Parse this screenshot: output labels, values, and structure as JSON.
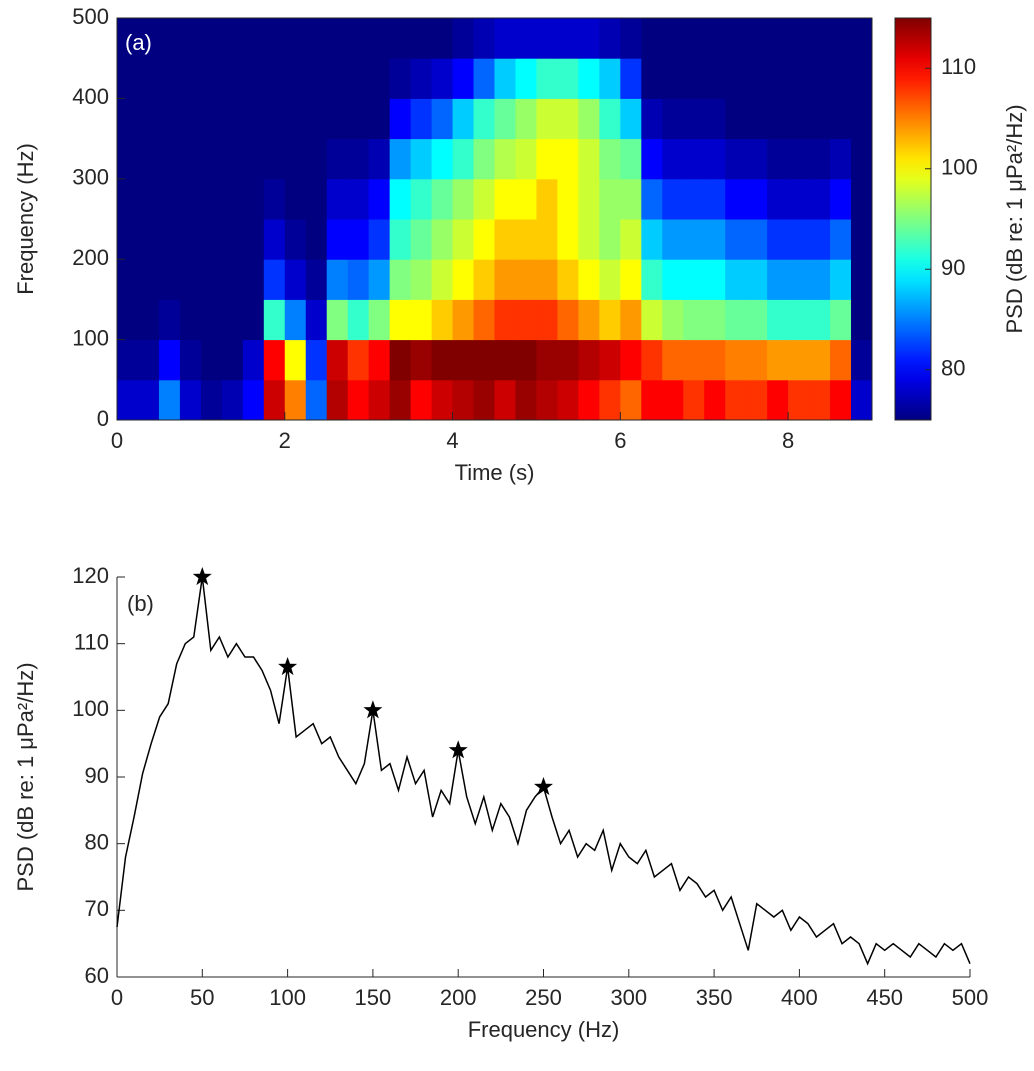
{
  "chart_data": [
    {
      "type": "heatmap",
      "annotation": "(a)",
      "xlabel": "Time (s)",
      "ylabel": "Frequency (Hz)",
      "colorbar_label": "PSD (dB re: 1 μPa²/Hz)",
      "colormap": "jet",
      "clim": [
        75,
        115
      ],
      "cticks": [
        80,
        90,
        100,
        110
      ],
      "xlim": [
        0,
        9
      ],
      "xticks": [
        0,
        2,
        4,
        6,
        8
      ],
      "ylim": [
        0,
        500
      ],
      "yticks": [
        0,
        100,
        200,
        300,
        400,
        500
      ],
      "xbins": [
        0,
        0.25,
        0.5,
        0.75,
        1,
        1.25,
        1.5,
        1.75,
        2,
        2.25,
        2.5,
        2.75,
        3,
        3.25,
        3.5,
        3.75,
        4,
        4.25,
        4.5,
        4.75,
        5,
        5.25,
        5.5,
        5.75,
        6,
        6.25,
        6.5,
        6.75,
        7,
        7.25,
        7.5,
        7.75,
        8,
        8.25,
        8.5,
        8.75,
        9
      ],
      "ybins": [
        0,
        50,
        100,
        150,
        200,
        250,
        300,
        350,
        400,
        450,
        500
      ],
      "z": [
        [
          78,
          78,
          85,
          78,
          76,
          77,
          80,
          112,
          105,
          84,
          113,
          110,
          112,
          114,
          110,
          112,
          113,
          114,
          112,
          114,
          113,
          112,
          110,
          108,
          106,
          110,
          110,
          108,
          110,
          108,
          108,
          110,
          108,
          108,
          110,
          78
        ],
        [
          76,
          76,
          80,
          76,
          75,
          75,
          78,
          110,
          100,
          82,
          112,
          108,
          110,
          115,
          114,
          115,
          115,
          115,
          115,
          115,
          114,
          114,
          113,
          112,
          110,
          108,
          106,
          106,
          106,
          105,
          105,
          104,
          104,
          104,
          106,
          76
        ],
        [
          75,
          75,
          76,
          75,
          75,
          75,
          75,
          92,
          85,
          78,
          95,
          92,
          95,
          100,
          100,
          102,
          104,
          106,
          108,
          108,
          108,
          106,
          104,
          102,
          104,
          98,
          96,
          95,
          95,
          94,
          94,
          92,
          92,
          92,
          94,
          75
        ],
        [
          75,
          75,
          75,
          75,
          75,
          75,
          75,
          82,
          78,
          76,
          85,
          84,
          86,
          95,
          96,
          98,
          100,
          102,
          104,
          104,
          104,
          102,
          100,
          98,
          100,
          92,
          90,
          90,
          90,
          88,
          88,
          86,
          86,
          86,
          88,
          75
        ],
        [
          75,
          75,
          75,
          75,
          75,
          75,
          75,
          78,
          76,
          75,
          80,
          80,
          82,
          92,
          94,
          96,
          98,
          100,
          102,
          102,
          102,
          100,
          98,
          96,
          98,
          88,
          86,
          86,
          86,
          84,
          84,
          82,
          82,
          82,
          84,
          75
        ],
        [
          75,
          75,
          75,
          75,
          75,
          75,
          75,
          76,
          75,
          75,
          78,
          78,
          80,
          90,
          92,
          94,
          96,
          98,
          100,
          100,
          102,
          100,
          98,
          96,
          96,
          84,
          82,
          82,
          82,
          80,
          80,
          78,
          78,
          78,
          80,
          75
        ],
        [
          75,
          75,
          75,
          75,
          75,
          75,
          75,
          75,
          75,
          75,
          76,
          76,
          77,
          86,
          88,
          90,
          92,
          95,
          97,
          98,
          100,
          100,
          98,
          95,
          94,
          80,
          78,
          78,
          78,
          77,
          77,
          76,
          76,
          76,
          77,
          75
        ],
        [
          75,
          75,
          75,
          75,
          75,
          75,
          75,
          75,
          75,
          75,
          75,
          75,
          75,
          80,
          82,
          84,
          88,
          92,
          94,
          96,
          98,
          98,
          96,
          92,
          88,
          77,
          76,
          76,
          76,
          75,
          75,
          75,
          75,
          75,
          75,
          75
        ],
        [
          75,
          75,
          75,
          75,
          75,
          75,
          75,
          75,
          75,
          75,
          75,
          75,
          75,
          76,
          77,
          78,
          80,
          84,
          88,
          90,
          92,
          92,
          90,
          88,
          82,
          75,
          75,
          75,
          75,
          75,
          75,
          75,
          75,
          75,
          75,
          75
        ],
        [
          75,
          75,
          75,
          75,
          75,
          75,
          75,
          75,
          75,
          75,
          75,
          75,
          75,
          75,
          75,
          75,
          76,
          77,
          78,
          78,
          78,
          78,
          78,
          77,
          76,
          75,
          75,
          75,
          75,
          75,
          75,
          75,
          75,
          75,
          75,
          75
        ]
      ]
    },
    {
      "type": "line",
      "annotation": "(b)",
      "xlabel": "Frequency (Hz)",
      "ylabel": "PSD (dB re: 1 μPa²/Hz)",
      "xlim": [
        0,
        500
      ],
      "xticks": [
        0,
        50,
        100,
        150,
        200,
        250,
        300,
        350,
        400,
        450,
        500
      ],
      "ylim": [
        60,
        120
      ],
      "yticks": [
        60,
        70,
        80,
        90,
        100,
        110,
        120
      ],
      "x": [
        0,
        5,
        10,
        15,
        20,
        25,
        30,
        35,
        40,
        45,
        50,
        55,
        60,
        65,
        70,
        75,
        80,
        85,
        90,
        95,
        100,
        105,
        110,
        115,
        120,
        125,
        130,
        135,
        140,
        145,
        150,
        155,
        160,
        165,
        170,
        175,
        180,
        185,
        190,
        195,
        200,
        205,
        210,
        215,
        220,
        225,
        230,
        235,
        240,
        245,
        250,
        255,
        260,
        265,
        270,
        275,
        280,
        285,
        290,
        295,
        300,
        305,
        310,
        315,
        320,
        325,
        330,
        335,
        340,
        345,
        350,
        355,
        360,
        365,
        370,
        375,
        380,
        385,
        390,
        395,
        400,
        405,
        410,
        415,
        420,
        425,
        430,
        435,
        440,
        445,
        450,
        455,
        460,
        465,
        470,
        475,
        480,
        485,
        490,
        495,
        500
      ],
      "series": [
        {
          "color": "#000000",
          "values": [
            67.5,
            78,
            84,
            90.5,
            95,
            99,
            101,
            107,
            110,
            111,
            120,
            109,
            111,
            108,
            110,
            108,
            108,
            106,
            103,
            98,
            106.5,
            96,
            97,
            98,
            95,
            96,
            93,
            91,
            89,
            92,
            100,
            91,
            92,
            88,
            93,
            89,
            91,
            84,
            88,
            86,
            94,
            87,
            83,
            87,
            82,
            86,
            84,
            80,
            85,
            87,
            88.5,
            84,
            80,
            82,
            78,
            80,
            79,
            82,
            76,
            80,
            78,
            77,
            79,
            75,
            76,
            77,
            73,
            75,
            74,
            72,
            73,
            70,
            72,
            68,
            64,
            71,
            70,
            69,
            70,
            67,
            69,
            68,
            66,
            67,
            68,
            65,
            66,
            65,
            62,
            65,
            64,
            65,
            64,
            63,
            65,
            64,
            63,
            65,
            64,
            65,
            62
          ]
        }
      ],
      "markers": {
        "marker": "star",
        "color": "#000000",
        "x": [
          50,
          100,
          150,
          200,
          250
        ],
        "values": [
          120,
          106.5,
          100,
          94,
          88.5
        ]
      }
    }
  ]
}
